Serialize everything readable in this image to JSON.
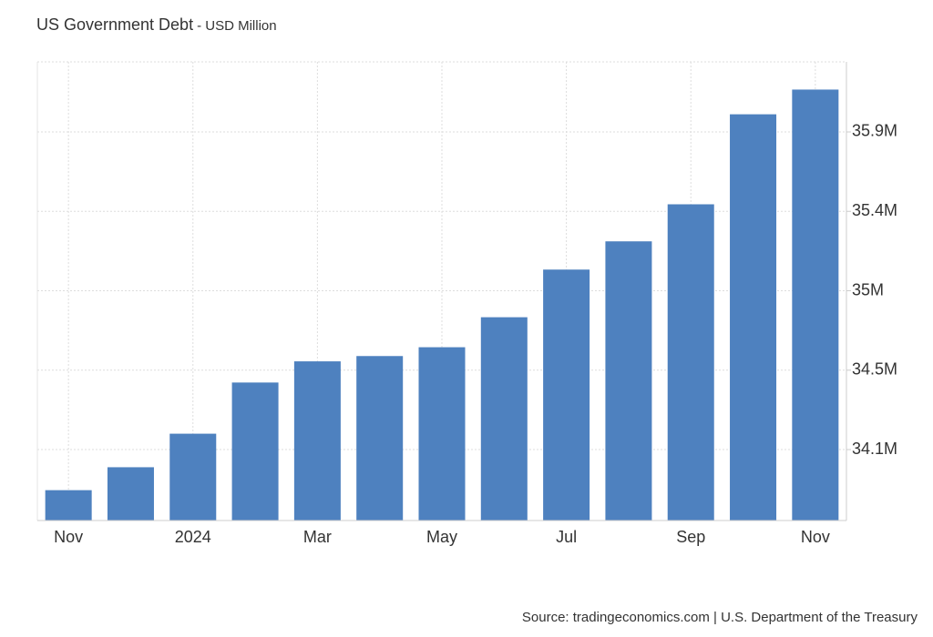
{
  "chart_data": {
    "type": "bar",
    "title": "US Government Debt",
    "subtitle": "- USD Million",
    "source": "Source: tradingeconomics.com | U.S. Department of the Treasury",
    "categories": [
      "Nov",
      null,
      "2024",
      null,
      "Mar",
      null,
      "May",
      null,
      "Jul",
      null,
      "Sep",
      null,
      "Nov"
    ],
    "values": [
      33860000,
      33990000,
      34180000,
      34470000,
      34590000,
      34620000,
      34670000,
      34840000,
      35110000,
      35270000,
      35480000,
      35990000,
      36130000
    ],
    "color": "#4e81bf",
    "ylim": [
      33688000,
      36287000
    ],
    "yticks": [
      {
        "value": 34090000,
        "label": "34.1M"
      },
      {
        "value": 34540000,
        "label": "34.5M"
      },
      {
        "value": 34990000,
        "label": "35M"
      },
      {
        "value": 35440000,
        "label": "35.4M"
      },
      {
        "value": 35890000,
        "label": "35.9M"
      }
    ],
    "grid": true
  }
}
